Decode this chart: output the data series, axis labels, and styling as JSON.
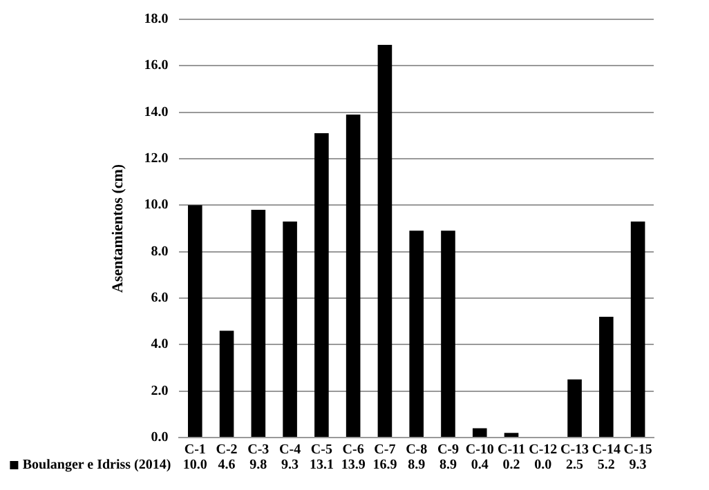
{
  "chart_data": {
    "type": "bar",
    "ylabel": "Asentamientos (cm)",
    "categories": [
      "C-1",
      "C-2",
      "C-3",
      "C-4",
      "C-5",
      "C-6",
      "C-7",
      "C-8",
      "C-9",
      "C-10",
      "C-11",
      "C-12",
      "C-13",
      "C-14",
      "C-15"
    ],
    "series": [
      {
        "name": "Boulanger e Idriss (2014)",
        "color": "#000000",
        "values": [
          10.0,
          4.6,
          9.8,
          9.3,
          13.1,
          13.9,
          16.9,
          8.9,
          8.9,
          0.4,
          0.2,
          0.0,
          2.5,
          5.2,
          9.3
        ],
        "value_labels": [
          "10.0",
          "4.6",
          "9.8",
          "9.3",
          "13.1",
          "13.9",
          "16.9",
          "8.9",
          "8.9",
          "0.4",
          "0.2",
          "0.0",
          "2.5",
          "5.2",
          "9.3"
        ]
      }
    ],
    "ylim": [
      0,
      18
    ],
    "yticks": [
      {
        "value": 0,
        "label": "0.0"
      },
      {
        "value": 2,
        "label": "2.0"
      },
      {
        "value": 4,
        "label": "4.0"
      },
      {
        "value": 6,
        "label": "6.0"
      },
      {
        "value": 8,
        "label": "8.0"
      },
      {
        "value": 10,
        "label": "10.0"
      },
      {
        "value": 12,
        "label": "12.0"
      },
      {
        "value": 14,
        "label": "14.0"
      },
      {
        "value": 16,
        "label": "16.0"
      },
      {
        "value": 18,
        "label": "18.0"
      }
    ],
    "grid": "y",
    "legend": "bottom"
  }
}
